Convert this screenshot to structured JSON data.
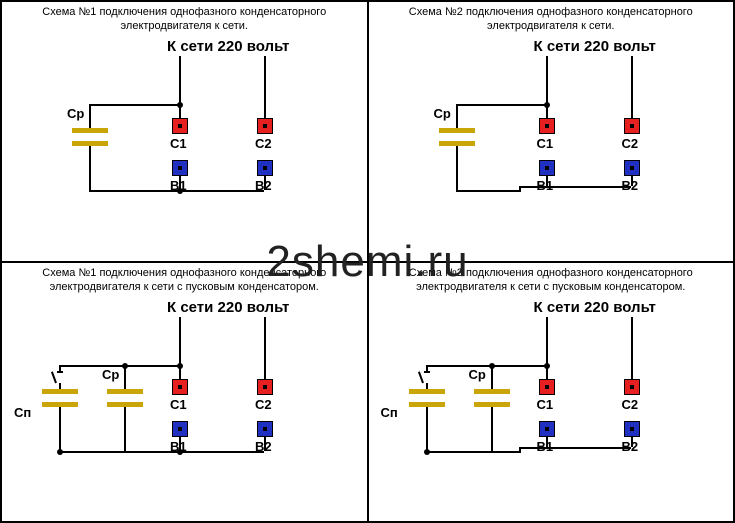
{
  "watermark": "2shemi.ru",
  "cells": [
    {
      "title": "Схема №1 подключения однофазного конденсаторного электродвигателя к сети.",
      "voltage": "К сети 220 вольт",
      "labels": {
        "cp": "Ср",
        "c1": "С1",
        "c2": "С2",
        "b1": "В1",
        "b2": "В2"
      },
      "has_cp": true,
      "has_cn": false,
      "b_wiring": "separate"
    },
    {
      "title": "Схема №2 подключения однофазного конденсаторного электродвигателя к сети.",
      "voltage": "К сети 220 вольт",
      "labels": {
        "cp": "Ср",
        "c1": "С1",
        "c2": "С2",
        "b1": "В1",
        "b2": "В2"
      },
      "has_cp": true,
      "has_cn": false,
      "b_wiring": "joined"
    },
    {
      "title": "Схема №1 подключения однофазного конденсаторного электродвигателя к сети с пусковым конденсатором.",
      "voltage": "К сети 220 вольт",
      "labels": {
        "cp": "Ср",
        "cn": "Сп",
        "c1": "С1",
        "c2": "С2",
        "b1": "В1",
        "b2": "В2"
      },
      "has_cp": true,
      "has_cn": true,
      "b_wiring": "separate"
    },
    {
      "title": "Схема №2 подключения однофазного конденсаторного электродвигателя к сети с пусковым конденсатором.",
      "voltage": "К сети 220 вольт",
      "labels": {
        "cp": "Ср",
        "cn": "Сп",
        "c1": "С1",
        "c2": "С2",
        "b1": "В1",
        "b2": "В2"
      },
      "has_cp": true,
      "has_cn": true,
      "b_wiring": "joined"
    }
  ],
  "colors": {
    "red": "#e62020",
    "blue": "#2030c0",
    "cap": "#c9a508",
    "wire": "#000000"
  }
}
